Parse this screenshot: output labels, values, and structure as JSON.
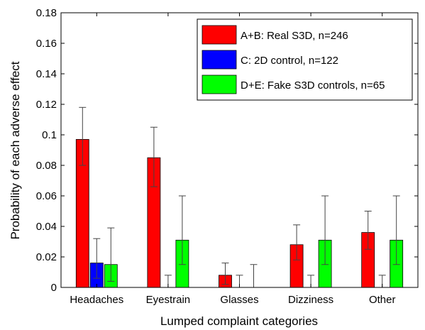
{
  "chart_data": {
    "type": "bar",
    "xlabel": "Lumped complaint categories",
    "ylabel": "Probability of each adverse effect",
    "ylim": [
      0,
      0.18
    ],
    "yticks": [
      "0",
      "0.02",
      "0.04",
      "0.06",
      "0.08",
      "0.1",
      "0.12",
      "0.14",
      "0.16",
      "0.18"
    ],
    "categories": [
      "Headaches",
      "Eyestrain",
      "Glasses",
      "Dizziness",
      "Other"
    ],
    "grid": false,
    "legend_position": "top-right",
    "series": [
      {
        "name": "A+B: Real S3D, n=246",
        "color": "#ff0000",
        "values": [
          0.097,
          0.085,
          0.008,
          0.028,
          0.036
        ],
        "err_low": [
          0.08,
          0.066,
          0.002,
          0.018,
          0.025
        ],
        "err_high": [
          0.118,
          0.105,
          0.016,
          0.041,
          0.05
        ]
      },
      {
        "name": "C: 2D control, n=122",
        "color": "#0000ff",
        "values": [
          0.016,
          0.0,
          0.0,
          0.0,
          0.0
        ],
        "err_low": [
          0.006,
          0.0,
          0.0,
          0.0,
          0.0
        ],
        "err_high": [
          0.032,
          0.008,
          0.008,
          0.008,
          0.008
        ]
      },
      {
        "name": "D+E: Fake S3D controls, n=65",
        "color": "#00ff00",
        "values": [
          0.015,
          0.031,
          0.0,
          0.031,
          0.031
        ],
        "err_low": [
          0.004,
          0.015,
          0.0,
          0.015,
          0.015
        ],
        "err_high": [
          0.039,
          0.06,
          0.015,
          0.06,
          0.06
        ]
      }
    ]
  }
}
